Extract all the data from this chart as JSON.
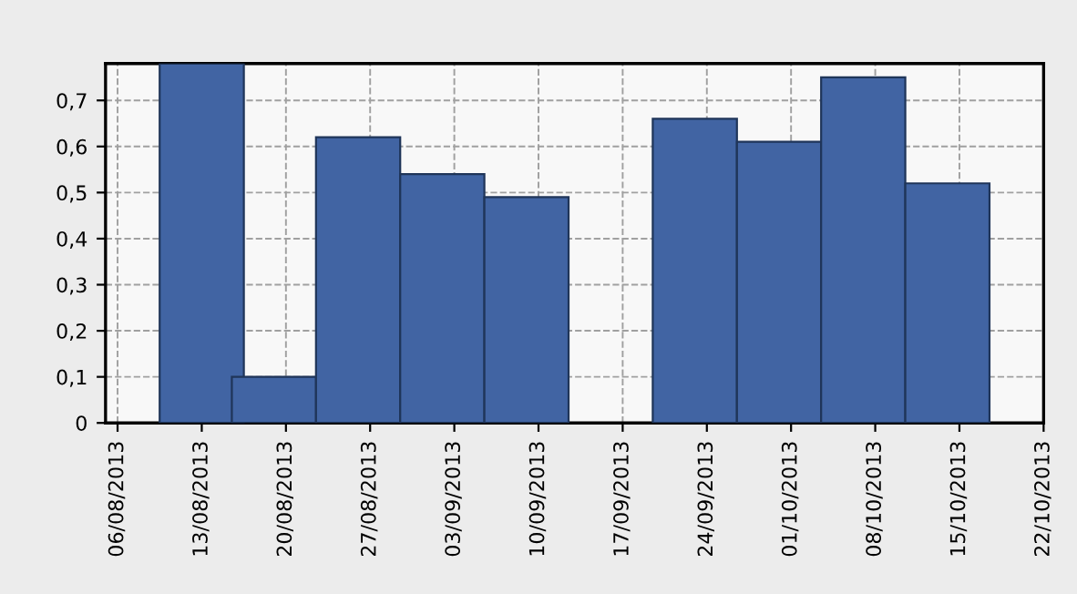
{
  "chart_data": {
    "type": "bar",
    "x": [
      "2013-08-13",
      "2013-08-19",
      "2013-08-26",
      "2013-09-02",
      "2013-09-09",
      "2013-09-23",
      "2013-09-30",
      "2013-10-07",
      "2013-10-14"
    ],
    "values": [
      0.78,
      0.1,
      0.62,
      0.54,
      0.49,
      0.66,
      0.61,
      0.75,
      0.52
    ],
    "color": "#4164a3",
    "xlim": [
      "2013-08-05",
      "2013-10-22"
    ],
    "xticks": [
      {
        "value": "2013-08-06",
        "label": "06/08/2013"
      },
      {
        "value": "2013-08-13",
        "label": "13/08/2013"
      },
      {
        "value": "2013-08-20",
        "label": "20/08/2013"
      },
      {
        "value": "2013-08-27",
        "label": "27/08/2013"
      },
      {
        "value": "2013-09-03",
        "label": "03/09/2013"
      },
      {
        "value": "2013-09-10",
        "label": "10/09/2013"
      },
      {
        "value": "2013-09-17",
        "label": "17/09/2013"
      },
      {
        "value": "2013-09-24",
        "label": "24/09/2013"
      },
      {
        "value": "2013-10-01",
        "label": "01/10/2013"
      },
      {
        "value": "2013-10-08",
        "label": "08/10/2013"
      },
      {
        "value": "2013-10-15",
        "label": "15/10/2013"
      },
      {
        "value": "2013-10-22",
        "label": "22/10/2013"
      }
    ],
    "ylim": [
      0,
      0.78
    ],
    "yticks": [
      0,
      {
        "value": 0.1,
        "label": "0,1"
      },
      {
        "value": 0.2,
        "label": "0,2"
      },
      {
        "value": 0.3,
        "label": "0,3"
      },
      {
        "value": 0.4,
        "label": "0,4"
      },
      {
        "value": 0.5,
        "label": "0,5"
      },
      {
        "value": 0.6,
        "label": "0,6"
      },
      {
        "value": 0.7,
        "label": "0,7"
      }
    ],
    "grid": true
  }
}
